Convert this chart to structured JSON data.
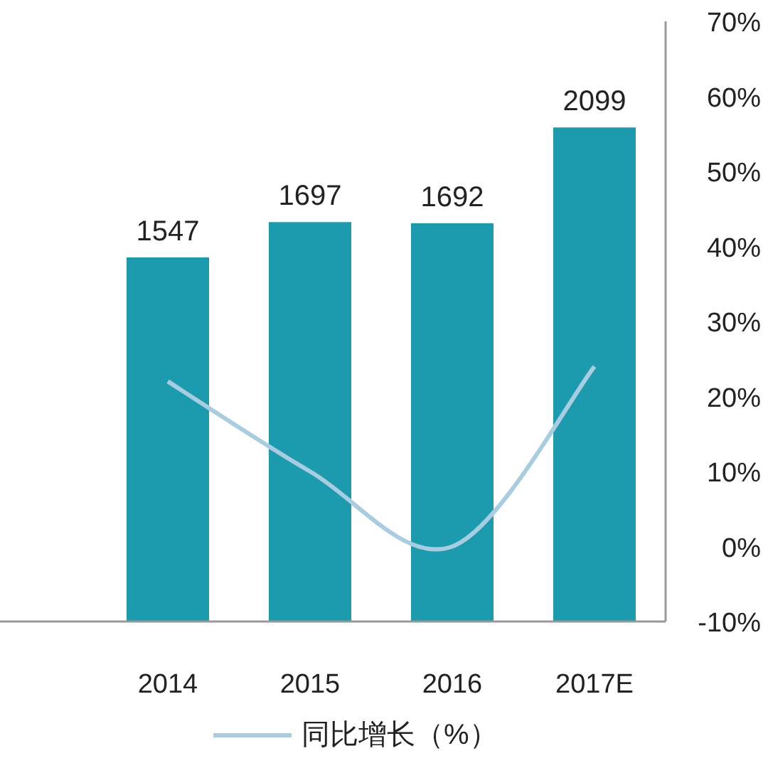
{
  "chart_data": {
    "type": "bar",
    "categories": [
      "2014",
      "2015",
      "2016",
      "2017E"
    ],
    "series": [
      {
        "color": "#1b9bad",
        "values": [
          1547,
          1697,
          1692,
          2099
        ],
        "value_labels": [
          "1547",
          "1697",
          "1692",
          "2099"
        ]
      },
      {
        "type": "line",
        "name": "同比增长（%）",
        "color": "#a9cde0",
        "values": [
          22,
          10,
          0,
          24
        ],
        "axis": "y2",
        "marker": "none",
        "line_style": "solid"
      }
    ],
    "ylim": [
      0,
      2550
    ],
    "y2lim": [
      -10,
      70
    ],
    "y2ticks": [
      {
        "value": 70,
        "label": "70%"
      },
      {
        "value": 60,
        "label": "60%"
      },
      {
        "value": 50,
        "label": "50%"
      },
      {
        "value": 40,
        "label": "40%"
      },
      {
        "value": 30,
        "label": "30%"
      },
      {
        "value": 20,
        "label": "20%"
      },
      {
        "value": 10,
        "label": "10%"
      },
      {
        "value": 0,
        "label": "0%"
      },
      {
        "value": -10,
        "label": "-10%"
      }
    ],
    "grid": false,
    "legend": "bottom"
  }
}
